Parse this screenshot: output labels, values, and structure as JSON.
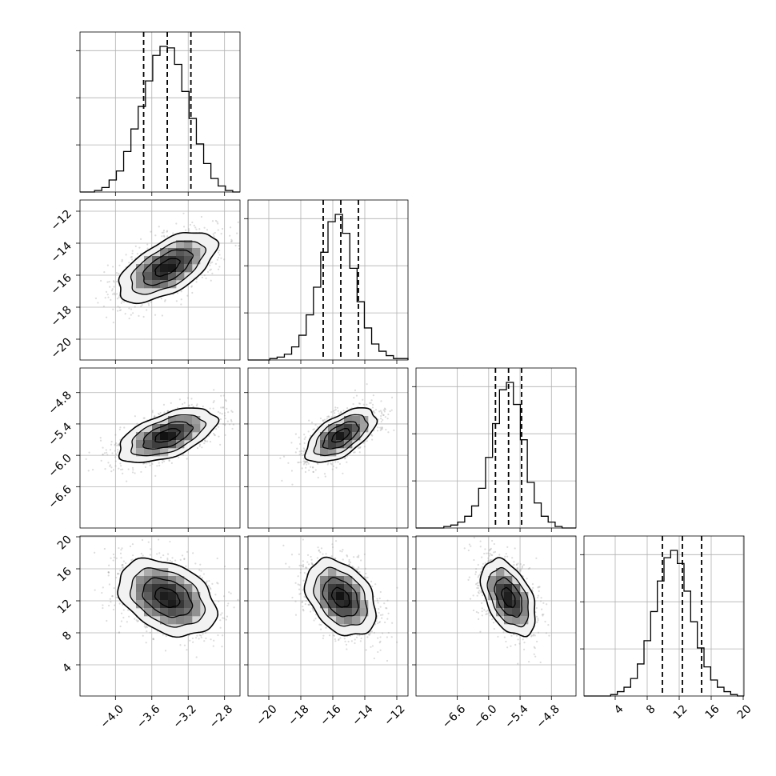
{
  "chart_data": {
    "type": "corner",
    "grid": true,
    "colors": {
      "line": "#000000",
      "grid": "#b0b0b0",
      "scatter": "#9a9a9a",
      "background": "#ffffff"
    },
    "parameters": [
      {
        "id": "p1",
        "ticks": [
          -4.0,
          -3.6,
          -3.2,
          -2.8
        ],
        "tick_labels": [
          "−4.0",
          "−3.6",
          "−3.2",
          "−2.8"
        ],
        "range": [
          -4.39,
          -2.63
        ],
        "mean": -3.43,
        "std": 0.27,
        "quantiles": [
          -3.69,
          -3.43,
          -3.17
        ]
      },
      {
        "id": "p2",
        "ticks": [
          -20,
          -18,
          -16,
          -14,
          -12
        ],
        "tick_labels": [
          "−20",
          "−18",
          "−16",
          "−14",
          "−12"
        ],
        "range": [
          -21.3,
          -11.3
        ],
        "mean": -15.5,
        "std": 1.1,
        "quantiles": [
          -16.6,
          -15.5,
          -14.4
        ]
      },
      {
        "id": "p3",
        "ticks": [
          -6.6,
          -6.0,
          -5.4,
          -4.8
        ],
        "tick_labels": [
          "−6.6",
          "−6.0",
          "−5.4",
          "−4.8"
        ],
        "range": [
          -7.39,
          -4.33
        ],
        "mean": -5.62,
        "std": 0.26,
        "quantiles": [
          -5.87,
          -5.62,
          -5.37
        ]
      },
      {
        "id": "p4",
        "ticks": [
          4,
          8,
          12,
          16,
          20
        ],
        "tick_labels": [
          "4",
          "8",
          "12",
          "16",
          "20"
        ],
        "range": [
          0.1,
          20.1
        ],
        "mean": 12.4,
        "std": 2.4,
        "quantiles": [
          9.9,
          12.4,
          14.8
        ]
      }
    ],
    "correlations": [
      [
        1.0,
        0.6,
        0.55,
        -0.35
      ],
      [
        0.6,
        1.0,
        0.6,
        -0.35
      ],
      [
        0.55,
        0.6,
        1.0,
        -0.45
      ],
      [
        -0.35,
        -0.35,
        -0.45,
        1.0
      ]
    ],
    "histograms": [
      [
        0,
        0,
        1,
        3,
        8,
        14,
        27,
        42,
        57,
        74,
        91,
        97,
        96,
        85,
        67,
        49,
        32,
        19,
        9,
        4,
        1,
        0
      ],
      [
        0,
        0,
        0,
        1,
        2,
        4,
        9,
        17,
        31,
        50,
        74,
        95,
        100,
        87,
        63,
        40,
        22,
        11,
        6,
        3,
        1,
        1
      ],
      [
        0,
        0,
        0,
        0,
        1,
        2,
        4,
        8,
        15,
        27,
        48,
        71,
        94,
        99,
        84,
        60,
        31,
        17,
        8,
        4,
        1,
        0,
        0
      ],
      [
        0,
        0,
        0,
        0,
        1,
        3,
        6,
        12,
        22,
        38,
        58,
        79,
        95,
        100,
        91,
        72,
        51,
        33,
        20,
        11,
        6,
        3,
        1,
        0
      ]
    ],
    "contour_levels_sigma": [
      0.5,
      1.0,
      1.5,
      2.0
    ]
  }
}
